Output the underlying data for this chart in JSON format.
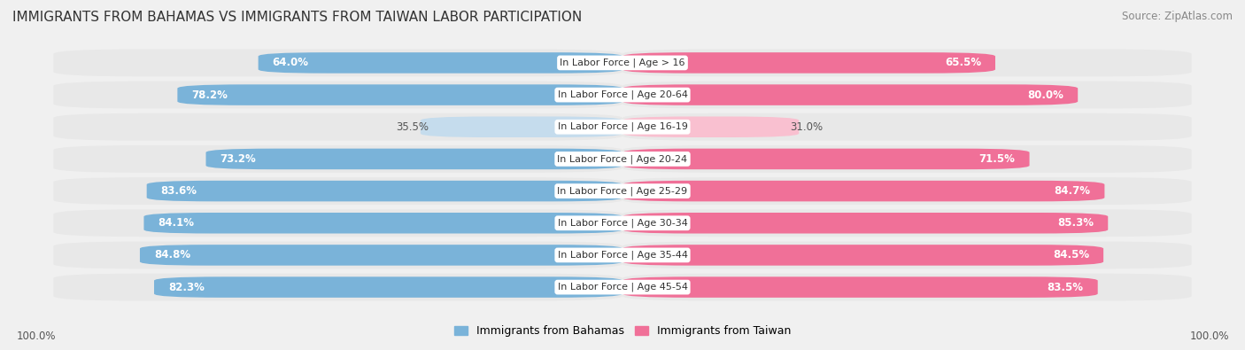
{
  "title": "IMMIGRANTS FROM BAHAMAS VS IMMIGRANTS FROM TAIWAN LABOR PARTICIPATION",
  "source": "Source: ZipAtlas.com",
  "categories": [
    "In Labor Force | Age > 16",
    "In Labor Force | Age 20-64",
    "In Labor Force | Age 16-19",
    "In Labor Force | Age 20-24",
    "In Labor Force | Age 25-29",
    "In Labor Force | Age 30-34",
    "In Labor Force | Age 35-44",
    "In Labor Force | Age 45-54"
  ],
  "bahamas_values": [
    64.0,
    78.2,
    35.5,
    73.2,
    83.6,
    84.1,
    84.8,
    82.3
  ],
  "taiwan_values": [
    65.5,
    80.0,
    31.0,
    71.5,
    84.7,
    85.3,
    84.5,
    83.5
  ],
  "bahamas_color": "#7ab3d9",
  "taiwan_color": "#f07098",
  "bahamas_light_color": "#c5dced",
  "taiwan_light_color": "#f9c0d0",
  "label_bahamas": "Immigrants from Bahamas",
  "label_taiwan": "Immigrants from Taiwan",
  "bg_color": "#f0f0f0",
  "bar_bg_color": "#e2e2e2",
  "row_bg_color": "#e8e8e8",
  "max_val": 100.0,
  "title_fontsize": 11,
  "source_fontsize": 8.5,
  "bar_label_fontsize": 8.5,
  "category_fontsize": 8,
  "legend_fontsize": 9,
  "footer_fontsize": 8.5
}
